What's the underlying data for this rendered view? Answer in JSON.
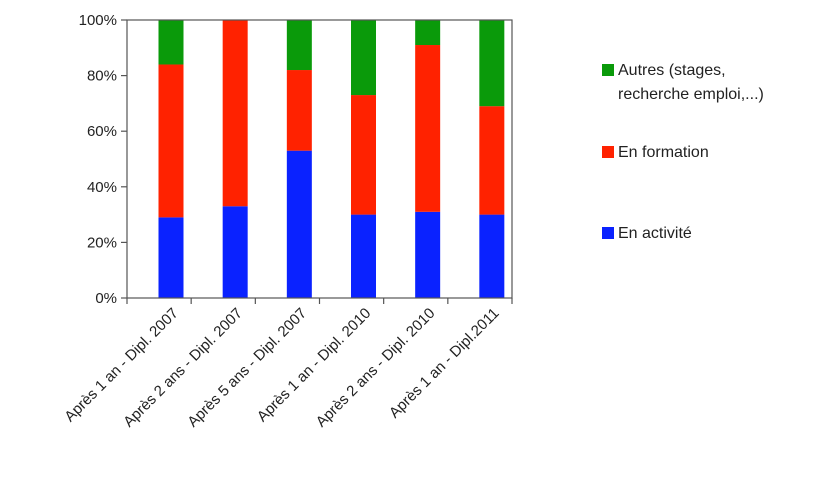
{
  "chart_data": {
    "type": "bar",
    "stacked": true,
    "normalized": true,
    "categories": [
      "Après 1 an - Dipl. 2007",
      "Après 2 ans - Dipl. 2007",
      "Après 5 ans - Dipl. 2007",
      "Après 1 an - Dipl. 2010",
      "Après 2 ans - Dipl. 2010",
      "Après 1 an - Dipl.2011"
    ],
    "series": [
      {
        "name": "En activité",
        "color": "#0a22ff",
        "values": [
          29,
          33,
          53,
          30,
          31,
          30
        ]
      },
      {
        "name": "En formation",
        "color": "#ff2200",
        "values": [
          55,
          67,
          29,
          43,
          60,
          39
        ]
      },
      {
        "name": "Autres (stages, recherche emploi,...)",
        "color": "#0a9a0a",
        "values": [
          16,
          0,
          18,
          27,
          9,
          31
        ]
      }
    ],
    "legend_order": [
      2,
      1,
      0
    ],
    "legend_lines": [
      [
        "Autres (stages,",
        "recherche emploi,...)"
      ],
      [
        "En formation"
      ],
      [
        "En activité"
      ]
    ],
    "y_ticks": [
      "0%",
      "20%",
      "40%",
      "60%",
      "80%",
      "100%"
    ],
    "y_tick_values": [
      0,
      20,
      40,
      60,
      80,
      100
    ],
    "ylim": [
      0,
      100
    ],
    "grid": false,
    "legend_position": "right",
    "title": "",
    "xlabel": "",
    "ylabel": ""
  }
}
